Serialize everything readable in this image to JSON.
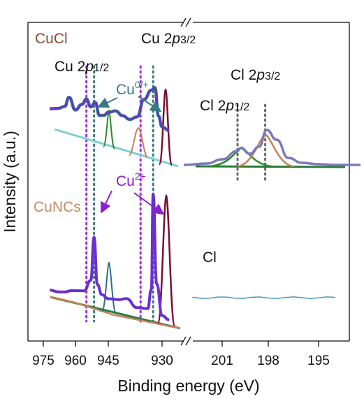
{
  "chart_data": {
    "type": "line",
    "xlabel": "Binding energy (eV)",
    "ylabel": "Intensity (a.u.)",
    "panels": [
      {
        "region": "Cu 2p",
        "xlim": [
          976,
          926
        ],
        "xticks": [
          "975",
          "960",
          "945",
          "930"
        ],
        "series": [
          {
            "name": "CuCl",
            "x": [
              972,
              968,
              965,
              963,
              960,
              957,
              955,
              953,
              951,
              949,
              947,
              945,
              943,
              941,
              939,
              937,
              935,
              933,
              932,
              931,
              930,
              928
            ],
            "y": [
              0.52,
              0.54,
              0.58,
              0.71,
              0.55,
              0.64,
              0.72,
              0.62,
              0.69,
              0.52,
              0.53,
              0.58,
              0.61,
              0.56,
              0.52,
              0.57,
              0.82,
              0.96,
              1.0,
              0.62,
              0.48,
              0.44
            ]
          },
          {
            "name": "CuNCs",
            "x": [
              972,
              968,
              965,
              962,
              959,
              956,
              953,
              951.5,
              950,
              948,
              945,
              942,
              940,
              937,
              934,
              933,
              932.5,
              931.5,
              930,
              928
            ],
            "y": [
              0.08,
              0.08,
              0.09,
              0.11,
              0.12,
              0.13,
              0.22,
              0.55,
              0.2,
              0.13,
              0.11,
              0.12,
              0.14,
              0.09,
              0.1,
              0.25,
              0.97,
              0.3,
              0.07,
              0.05
            ]
          }
        ]
      },
      {
        "region": "Cl 2p",
        "xlim": [
          204,
          192
        ],
        "xticks": [
          "201",
          "198",
          "195"
        ],
        "series": [
          {
            "name": "CuCl",
            "x": [
              203.5,
              202,
              201,
              200,
              199.8,
              199.2,
              198.6,
              198.1,
              197.5,
              196.8,
              196,
              195,
              194,
              193,
              192.5
            ],
            "y": [
              0.02,
              0.04,
              0.1,
              0.22,
              0.26,
              0.18,
              0.28,
              0.52,
              0.38,
              0.12,
              0.05,
              0.03,
              0.02,
              0.02,
              0.02
            ]
          },
          {
            "name": "Cl",
            "x": [
              203.5,
              200,
              197,
              194,
              192.5
            ],
            "y": [
              0.0,
              0.0,
              0.0,
              0.0,
              0.0
            ]
          }
        ]
      }
    ],
    "reference_lines": [
      {
        "x": 955,
        "color": "#9b30d9"
      },
      {
        "x": 951.5,
        "color": "#3a7a86"
      },
      {
        "x": 936,
        "color": "#9b30d9"
      },
      {
        "x": 932.5,
        "color": "#3a7a86"
      },
      {
        "x": 200.0,
        "color": "#666666"
      },
      {
        "x": 198.2,
        "color": "#666666"
      }
    ]
  },
  "annotations": {
    "cucl": "CuCl",
    "cu_2p32": "Cu 2",
    "cu_2p32_italic": "p",
    "cu_2p32_sub": "3/2",
    "cu_2p12": "Cu 2",
    "cu_2p12_italic": "p",
    "cu_2p12_sub": "1/2",
    "cu0": "Cu",
    "cu0_sup": "0/+",
    "cl_2p32": "Cl 2",
    "cl_2p32_italic": "p",
    "cl_2p32_sub": "3/2",
    "cl_2p12": "Cl 2",
    "cl_2p12_italic": "p",
    "cl_2p12_sub": "1/2",
    "cu2": "Cu",
    "cu2_sup": "2+",
    "cuncs": "CuNCs",
    "cl": "Cl"
  },
  "colors": {
    "cucl_label": "#8a4a2e",
    "cuncs_label": "#c78a64",
    "cu0_label": "#3a7a86",
    "cu2_label": "#8a1fcc",
    "spectrum_main": "#6a2fd0",
    "spectrum_teal": "#2f6f86",
    "envelope": "#7ad0d8",
    "fit_dark": "#7a1030",
    "fit_green": "#2a8a2a",
    "fit_orange": "#c9805c",
    "baseline_green": "#2a7a3a",
    "cl_flat": "#3a8fc0"
  }
}
